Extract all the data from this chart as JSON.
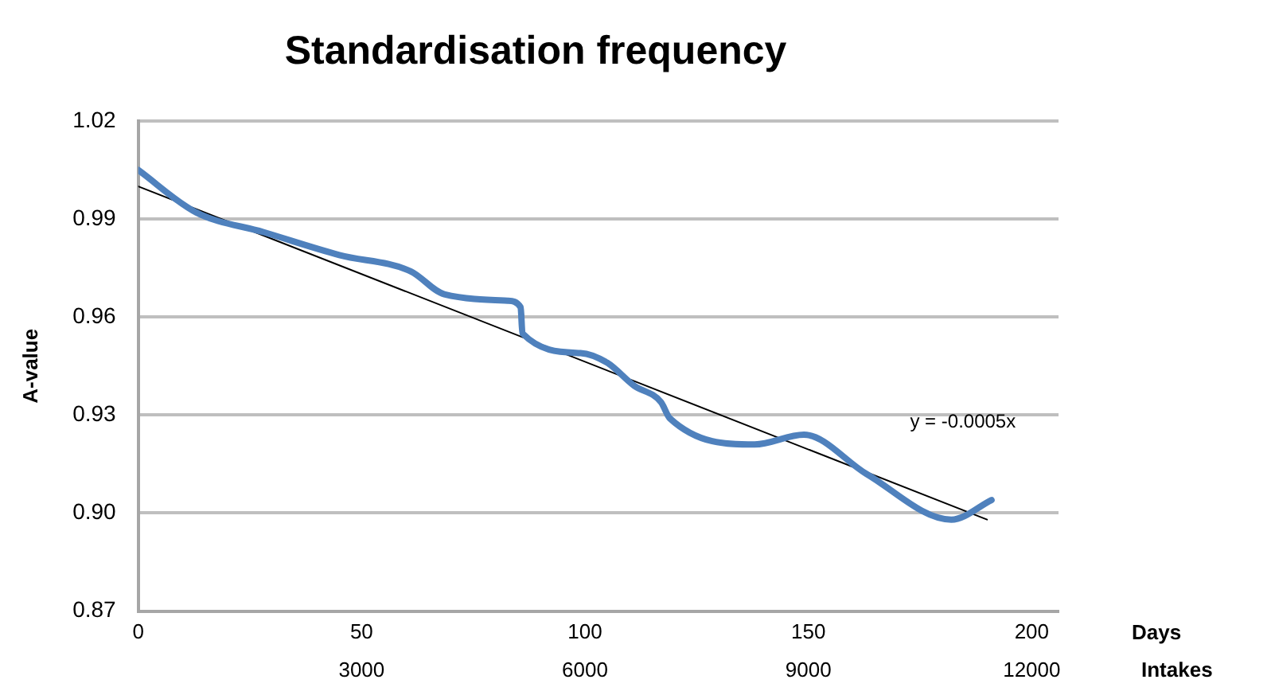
{
  "chart_data": {
    "type": "line",
    "title": "Standardisation frequency",
    "xlabel": "Days",
    "ylabel": "A-value",
    "x2label": "Intakes",
    "xlim": [
      0,
      206
    ],
    "xticks": [
      0,
      50,
      100,
      150,
      200
    ],
    "x2lim": [
      0,
      12360
    ],
    "x2ticks": [
      3000,
      6000,
      9000,
      12000
    ],
    "ylim": [
      0.87,
      1.02
    ],
    "yticks": [
      {
        "value": 0.87,
        "label": "0.87"
      },
      {
        "value": 0.9,
        "label": "0.90"
      },
      {
        "value": 0.93,
        "label": "0.93"
      },
      {
        "value": 0.96,
        "label": "0.96"
      },
      {
        "value": 0.99,
        "label": "0.99"
      },
      {
        "value": 1.02,
        "label": "1.02"
      }
    ],
    "grid": "y",
    "legend": false,
    "marker": "none",
    "line_style": "solid",
    "annotations": [
      "y = -0.0005x"
    ],
    "series": [
      {
        "color": "#4f81bd",
        "x": [
          0,
          13,
          28,
          45,
          61,
          68.5,
          82.7,
          85.6,
          86,
          99,
          105,
          111,
          117,
          119,
          138,
          149,
          163,
          182,
          191
        ],
        "values": [
          1.005,
          0.992,
          0.986,
          0.979,
          0.974,
          0.967,
          0.965,
          0.963,
          0.955,
          0.949,
          0.946,
          0.939,
          0.934,
          0.929,
          0.921,
          0.924,
          0.912,
          0.898,
          0.904
        ]
      },
      {
        "type": "line",
        "color": "#000000",
        "x": [
          0,
          190
        ],
        "values": [
          1.0,
          0.898
        ]
      }
    ]
  }
}
